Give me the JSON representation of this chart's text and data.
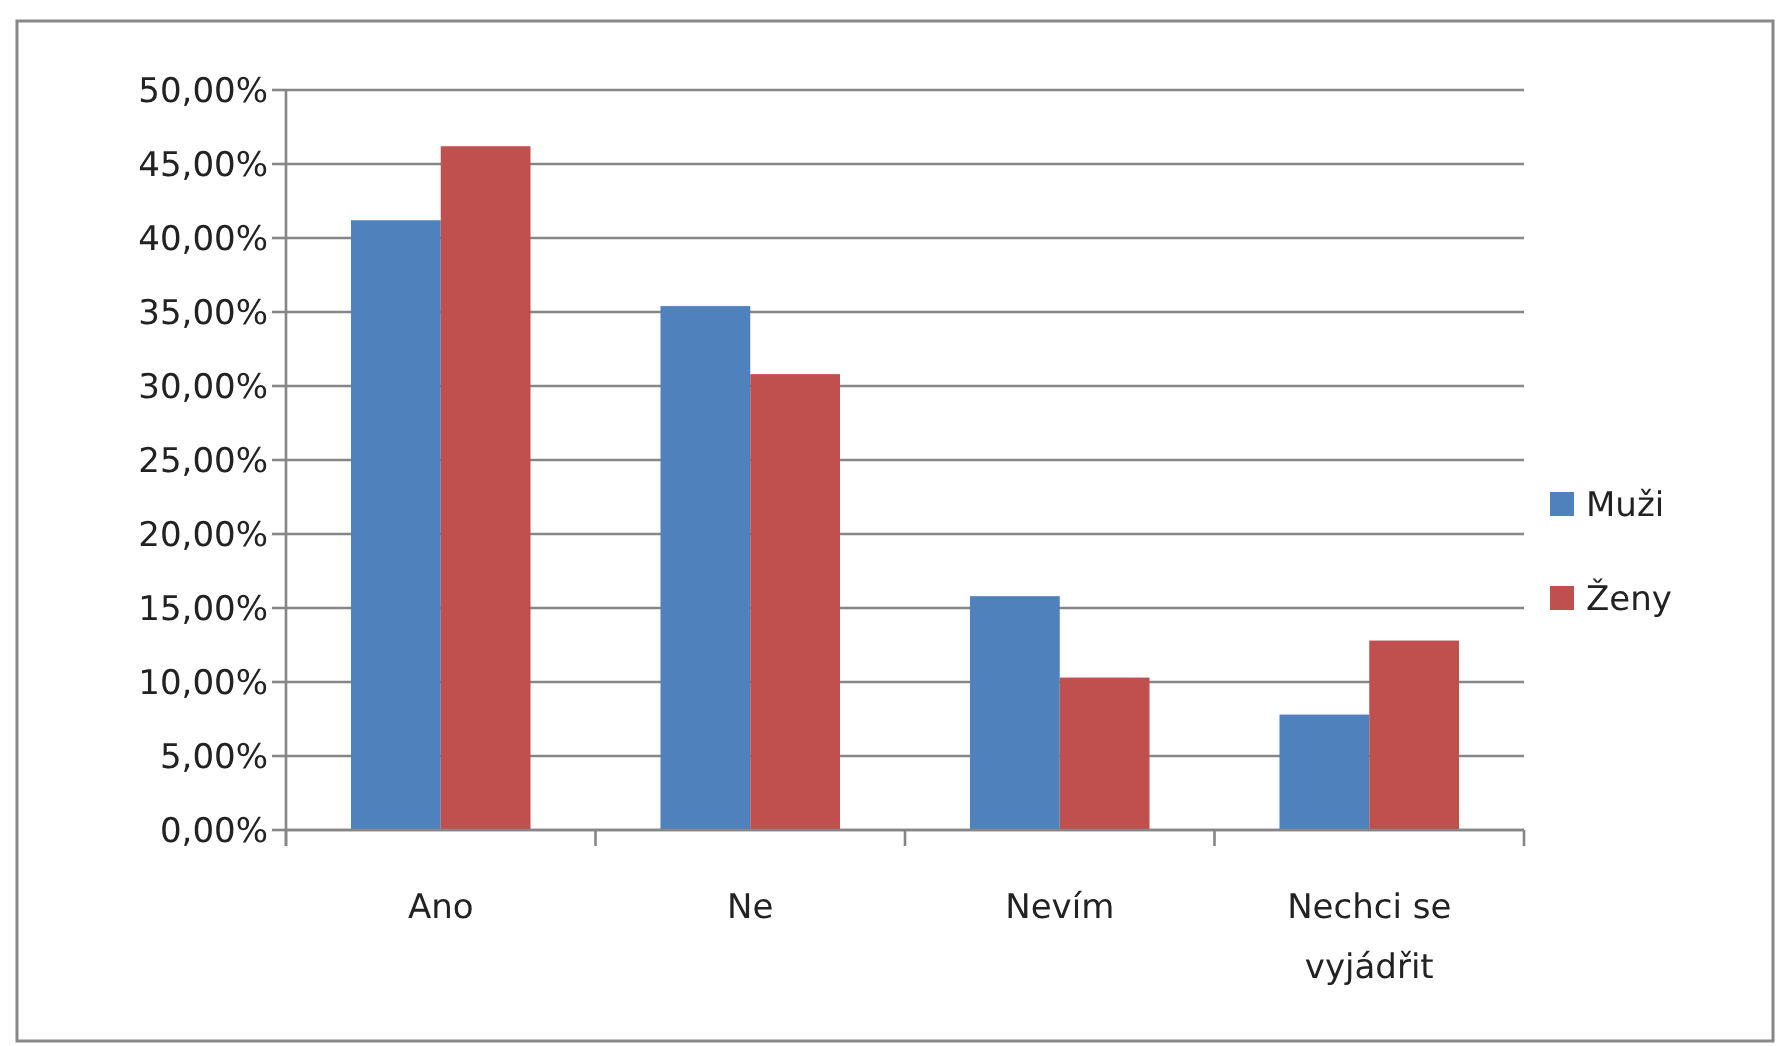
{
  "chart_data": {
    "type": "bar",
    "categories": [
      "Ano",
      "Ne",
      "Nevím",
      "Nechci se vyjádřit"
    ],
    "series": [
      {
        "name": "Muži",
        "color": "#4f81bd",
        "values": [
          41.2,
          35.4,
          15.8,
          7.8
        ]
      },
      {
        "name": "Ženy",
        "color": "#c0504d",
        "values": [
          46.2,
          30.8,
          10.3,
          12.8
        ]
      }
    ],
    "ylim": [
      0,
      50
    ],
    "yticks": [
      {
        "value": 0,
        "label": "0,00%"
      },
      {
        "value": 5,
        "label": "5,00%"
      },
      {
        "value": 10,
        "label": "10,00%"
      },
      {
        "value": 15,
        "label": "15,00%"
      },
      {
        "value": 20,
        "label": "20,00%"
      },
      {
        "value": 25,
        "label": "25,00%"
      },
      {
        "value": 30,
        "label": "30,00%"
      },
      {
        "value": 35,
        "label": "35,00%"
      },
      {
        "value": 40,
        "label": "40,00%"
      },
      {
        "value": 45,
        "label": "45,00%"
      },
      {
        "value": 50,
        "label": "50,00%"
      }
    ],
    "grid": "y",
    "legend": "right"
  }
}
